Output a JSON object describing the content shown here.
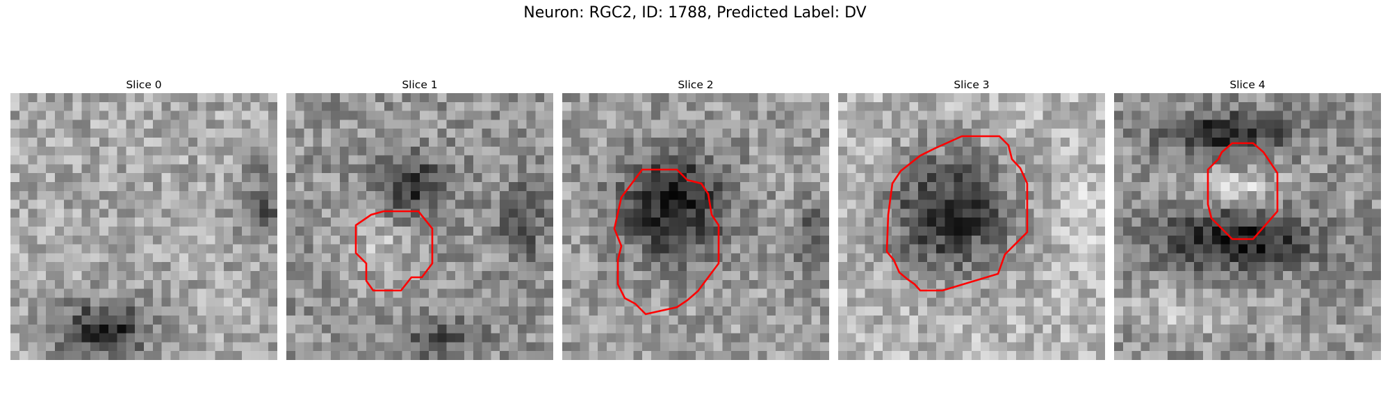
{
  "figure": {
    "title": "Neuron: RGC2, ID: 1788, Predicted Label: DV"
  },
  "slices": [
    {
      "title": "Slice 0"
    },
    {
      "title": "Slice 1"
    },
    {
      "title": "Slice 2"
    },
    {
      "title": "Slice 3"
    },
    {
      "title": "Slice 4"
    }
  ],
  "contour_color": "#ff0000",
  "colormap": "grayscale"
}
